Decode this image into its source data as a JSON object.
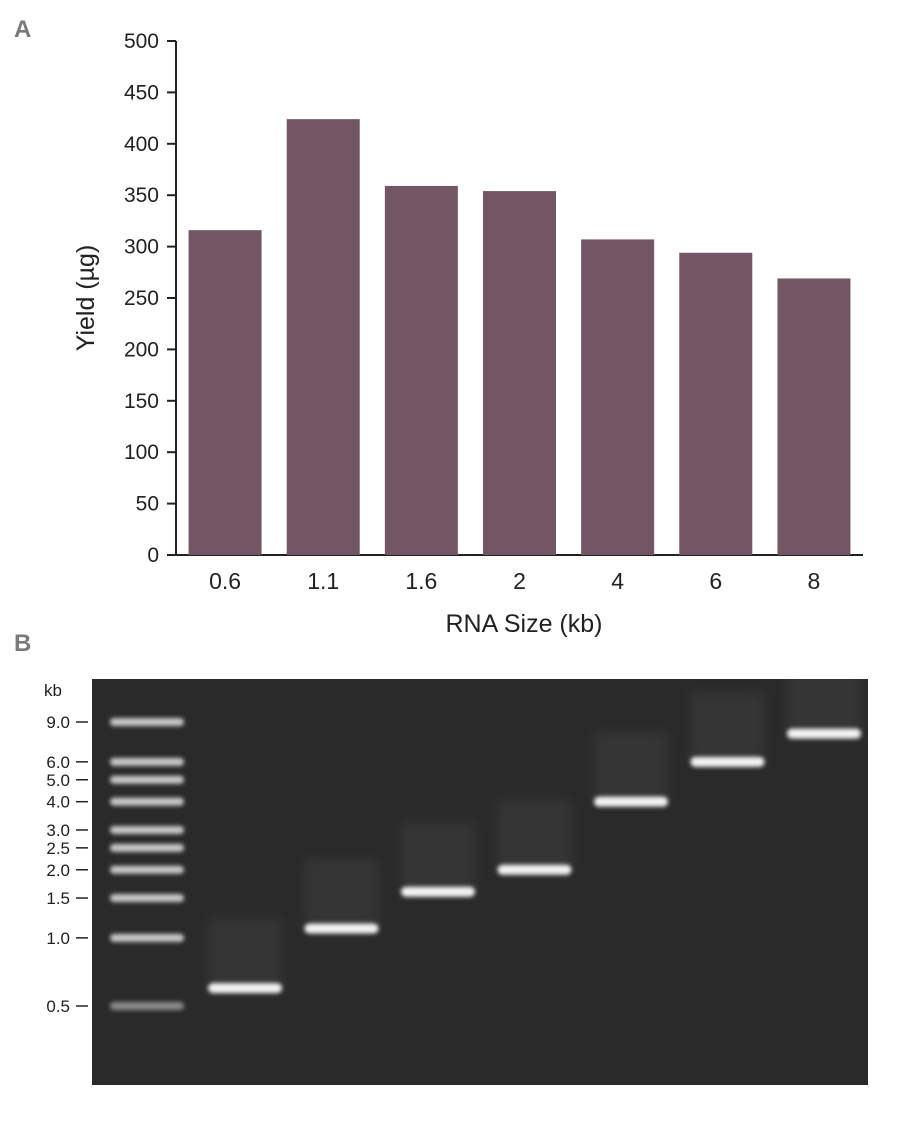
{
  "panels": {
    "a": "A",
    "b": "B"
  },
  "chart_data": {
    "type": "bar",
    "categories": [
      "0.6",
      "1.1",
      "1.6",
      "2",
      "4",
      "6",
      "8"
    ],
    "values": [
      316,
      424,
      359,
      354,
      307,
      294,
      269
    ],
    "xlabel": "RNA Size (kb)",
    "ylabel": "Yield (µg)",
    "ylim": [
      0,
      500
    ],
    "yticks": [
      "0",
      "50",
      "100",
      "150",
      "200",
      "250",
      "300",
      "350",
      "400",
      "450",
      "500"
    ],
    "bar_color": "#735664",
    "grid": false
  },
  "gel": {
    "unit_label": "kb",
    "ladder_marks": [
      {
        "label": "9.0",
        "kb": 9.0
      },
      {
        "label": "6.0",
        "kb": 6.0
      },
      {
        "label": "5.0",
        "kb": 5.0
      },
      {
        "label": "4.0",
        "kb": 4.0
      },
      {
        "label": "3.0",
        "kb": 3.0
      },
      {
        "label": "2.5",
        "kb": 2.5
      },
      {
        "label": "2.0",
        "kb": 2.0
      },
      {
        "label": "1.5",
        "kb": 1.5
      },
      {
        "label": "1.0",
        "kb": 1.0
      },
      {
        "label": "0.5",
        "kb": 0.5
      }
    ],
    "sample_lanes_kb": [
      0.6,
      1.1,
      1.6,
      2,
      4,
      6,
      8
    ],
    "background_color": "#2a2a2a"
  }
}
